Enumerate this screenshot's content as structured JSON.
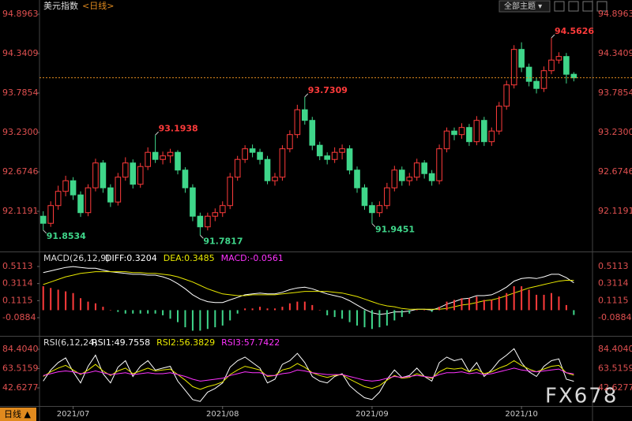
{
  "chart_data": [
    {
      "type": "candlestick",
      "title": "美元指数",
      "period": "<日线>",
      "up_color": "#ff3b3b",
      "down_color": "#3fd68a",
      "last_line_color": "#e08a1e",
      "xlim": [
        -0.5,
        73.5
      ],
      "xticks": [
        {
          "value": 4,
          "label": "2021/07"
        },
        {
          "value": 24,
          "label": "2021/08"
        },
        {
          "value": 44,
          "label": "2021/09"
        },
        {
          "value": 64,
          "label": "2021/10"
        }
      ],
      "ylim": [
        91.5637,
        94.8963
      ],
      "yticks": [
        94.8963,
        94.3409,
        93.7854,
        {
          "value": 93.23,
          "label": "93.2300"
        },
        92.6746,
        92.1191
      ],
      "open": [
        92.05,
        91.95,
        92.2,
        92.4,
        92.55,
        92.35,
        92.1,
        92.45,
        92.8,
        92.45,
        92.25,
        92.6,
        92.8,
        92.5,
        92.75,
        92.95,
        92.85,
        92.9,
        92.95,
        92.7,
        92.45,
        92.05,
        91.9,
        92.05,
        92.1,
        92.2,
        92.6,
        92.85,
        93.0,
        92.95,
        92.85,
        92.55,
        92.6,
        93.0,
        93.2,
        93.55,
        93.4,
        93.05,
        92.9,
        92.85,
        92.95,
        93.0,
        92.7,
        92.45,
        92.2,
        92.1,
        92.2,
        92.45,
        92.7,
        92.55,
        92.6,
        92.8,
        92.65,
        92.55,
        93.0,
        93.25,
        93.2,
        93.3,
        93.1,
        93.4,
        93.1,
        93.25,
        93.6,
        93.9,
        94.4,
        94.15,
        93.95,
        93.85,
        94.1,
        94.25,
        94.3,
        94.05
      ],
      "high": [
        92.12,
        92.26,
        92.48,
        92.62,
        92.6,
        92.4,
        92.5,
        92.86,
        92.84,
        92.5,
        92.66,
        92.88,
        92.85,
        92.8,
        93.02,
        93.1938,
        92.96,
        93.0,
        92.98,
        92.74,
        92.5,
        92.1,
        92.1,
        92.16,
        92.26,
        92.66,
        92.9,
        93.05,
        93.06,
        93.0,
        92.9,
        92.66,
        93.05,
        93.26,
        93.62,
        93.7309,
        93.45,
        93.1,
        92.95,
        93.02,
        93.06,
        93.05,
        92.75,
        92.5,
        92.25,
        92.26,
        92.52,
        92.76,
        92.75,
        92.66,
        92.86,
        92.84,
        92.7,
        93.06,
        93.3,
        93.3,
        93.36,
        93.35,
        93.46,
        93.45,
        93.3,
        93.66,
        93.96,
        94.46,
        94.5,
        94.2,
        94.0,
        94.16,
        94.5626,
        94.36,
        94.35,
        94.08
      ],
      "low": [
        91.8534,
        91.9,
        92.14,
        92.33,
        92.28,
        92.04,
        92.05,
        92.4,
        92.38,
        92.18,
        92.2,
        92.55,
        92.44,
        92.45,
        92.7,
        92.8,
        92.78,
        92.8,
        92.64,
        92.38,
        91.98,
        91.7817,
        91.85,
        91.98,
        92.04,
        92.15,
        92.55,
        92.8,
        92.88,
        92.78,
        92.5,
        92.48,
        92.55,
        92.95,
        93.15,
        93.34,
        92.98,
        92.84,
        92.78,
        92.8,
        92.85,
        92.64,
        92.38,
        92.14,
        91.9451,
        92.04,
        92.15,
        92.4,
        92.48,
        92.48,
        92.55,
        92.58,
        92.48,
        92.5,
        92.95,
        93.12,
        93.14,
        93.04,
        93.05,
        93.04,
        93.04,
        93.2,
        93.55,
        93.85,
        94.08,
        93.88,
        93.78,
        93.8,
        94.05,
        94.2,
        93.92,
        93.95
      ],
      "close": [
        91.95,
        92.2,
        92.4,
        92.55,
        92.35,
        92.1,
        92.45,
        92.8,
        92.45,
        92.25,
        92.6,
        92.8,
        92.5,
        92.75,
        92.95,
        92.85,
        92.9,
        92.95,
        92.7,
        92.45,
        92.05,
        91.9,
        92.05,
        92.1,
        92.2,
        92.6,
        92.85,
        93.0,
        92.95,
        92.85,
        92.55,
        92.6,
        93.0,
        93.2,
        93.55,
        93.4,
        93.05,
        92.9,
        92.85,
        92.95,
        93.0,
        92.7,
        92.45,
        92.2,
        92.1,
        92.2,
        92.45,
        92.7,
        92.55,
        92.6,
        92.8,
        92.65,
        92.55,
        93.0,
        93.25,
        93.2,
        93.3,
        93.1,
        93.4,
        93.1,
        93.25,
        93.6,
        93.9,
        94.4,
        94.15,
        93.95,
        93.85,
        94.1,
        94.25,
        94.3,
        94.05,
        94.0
      ],
      "annotations": [
        {
          "x": 0,
          "value": 91.8534,
          "color": "#3fd68a"
        },
        {
          "x": 15,
          "value": 93.1938,
          "color": "#ff3b3b"
        },
        {
          "x": 21,
          "value": 91.7817,
          "color": "#3fd68a"
        },
        {
          "x": 35,
          "value": 93.7309,
          "color": "#ff3b3b"
        },
        {
          "x": 44,
          "value": 91.9451,
          "color": "#3fd68a"
        },
        {
          "x": 68,
          "value": 94.5626,
          "color": "#ff3b3b"
        }
      ]
    },
    {
      "type": "macd",
      "title": "MACD(26,12,9)",
      "ylim": [
        -0.2913,
        0.6589
      ],
      "yticks": [
        0.5113,
        0.3114,
        0.1115,
        -0.0884
      ],
      "series": [
        {
          "name": "DIFF:0.3204",
          "color": "#ffffff",
          "kind": "line",
          "values": [
            0.44,
            0.46,
            0.48,
            0.5,
            0.51,
            0.5,
            0.49,
            0.49,
            0.47,
            0.45,
            0.44,
            0.43,
            0.42,
            0.42,
            0.41,
            0.41,
            0.39,
            0.36,
            0.31,
            0.25,
            0.18,
            0.13,
            0.1,
            0.09,
            0.09,
            0.12,
            0.15,
            0.18,
            0.19,
            0.2,
            0.19,
            0.19,
            0.21,
            0.24,
            0.26,
            0.27,
            0.25,
            0.22,
            0.19,
            0.17,
            0.15,
            0.11,
            0.06,
            0.01,
            -0.03,
            -0.05,
            -0.04,
            -0.02,
            -0.02,
            -0.01,
            0.01,
            0.01,
            0.0,
            0.03,
            0.07,
            0.1,
            0.13,
            0.14,
            0.17,
            0.17,
            0.18,
            0.22,
            0.27,
            0.34,
            0.37,
            0.38,
            0.37,
            0.39,
            0.42,
            0.42,
            0.38,
            0.3204
          ]
        },
        {
          "name": "DEA:0.3485",
          "color": "#e8e800",
          "kind": "line",
          "values": [
            0.3,
            0.33,
            0.36,
            0.39,
            0.41,
            0.43,
            0.44,
            0.45,
            0.45,
            0.45,
            0.45,
            0.45,
            0.44,
            0.44,
            0.43,
            0.43,
            0.42,
            0.41,
            0.39,
            0.36,
            0.33,
            0.29,
            0.25,
            0.22,
            0.19,
            0.18,
            0.17,
            0.17,
            0.18,
            0.18,
            0.18,
            0.18,
            0.19,
            0.2,
            0.21,
            0.22,
            0.22,
            0.22,
            0.22,
            0.21,
            0.2,
            0.18,
            0.16,
            0.13,
            0.1,
            0.07,
            0.05,
            0.04,
            0.02,
            0.01,
            0.01,
            0.01,
            0.01,
            0.01,
            0.02,
            0.04,
            0.06,
            0.07,
            0.09,
            0.11,
            0.12,
            0.14,
            0.17,
            0.2,
            0.23,
            0.26,
            0.28,
            0.3,
            0.32,
            0.34,
            0.35,
            0.3485
          ]
        },
        {
          "name": "MACD:-0.0561",
          "color": "#ff33ff",
          "kind": "histogram",
          "up_color": "#ff3b3b",
          "down_color": "#3fd68a",
          "values": [
            0.28,
            0.26,
            0.24,
            0.22,
            0.2,
            0.14,
            0.1,
            0.08,
            0.04,
            0,
            -0.02,
            -0.04,
            -0.04,
            -0.04,
            -0.04,
            -0.04,
            -0.06,
            -0.1,
            -0.14,
            -0.2,
            -0.24,
            -0.24,
            -0.22,
            -0.2,
            -0.18,
            -0.12,
            -0.04,
            0.02,
            0.02,
            0.04,
            0.02,
            0.02,
            0.04,
            0.08,
            0.1,
            0.1,
            0.06,
            0,
            -0.06,
            -0.08,
            -0.1,
            -0.14,
            -0.18,
            -0.2,
            -0.22,
            -0.2,
            -0.18,
            -0.12,
            -0.08,
            -0.04,
            0,
            0,
            -0.02,
            0.04,
            0.1,
            0.12,
            0.14,
            0.14,
            0.16,
            0.12,
            0.12,
            0.16,
            0.2,
            0.28,
            0.28,
            0.24,
            0.18,
            0.18,
            0.2,
            0.16,
            0.06,
            -0.0561
          ]
        }
      ]
    },
    {
      "type": "rsi",
      "title": "RSI(6,12,24)",
      "ylim": [
        23.02,
        97.19
      ],
      "yticks": [
        {
          "value": 84.404,
          "label": "84.4040"
        },
        63.5159,
        42.6277
      ],
      "series": [
        {
          "name": "RSI1:49.7558",
          "color": "#ffffff",
          "values": [
            50,
            62,
            70,
            75,
            60,
            48,
            66,
            78,
            58,
            48,
            65,
            72,
            55,
            66,
            72,
            62,
            64,
            66,
            50,
            40,
            30,
            28,
            38,
            42,
            48,
            65,
            72,
            76,
            70,
            64,
            48,
            52,
            68,
            72,
            80,
            70,
            55,
            50,
            48,
            55,
            58,
            45,
            38,
            32,
            30,
            38,
            52,
            62,
            54,
            56,
            64,
            55,
            50,
            70,
            76,
            72,
            74,
            60,
            70,
            55,
            62,
            72,
            78,
            85,
            70,
            60,
            55,
            66,
            72,
            74,
            52,
            49.7558
          ]
        },
        {
          "name": "RSI2:56.3829",
          "color": "#e8e800",
          "values": [
            55,
            60,
            64,
            67,
            62,
            57,
            62,
            68,
            61,
            56,
            61,
            64,
            58,
            61,
            64,
            61,
            62,
            63,
            57,
            51,
            44,
            41,
            44,
            46,
            49,
            57,
            62,
            66,
            64,
            62,
            55,
            56,
            62,
            64,
            69,
            65,
            59,
            56,
            54,
            56,
            57,
            52,
            48,
            44,
            42,
            45,
            51,
            56,
            53,
            54,
            58,
            55,
            53,
            60,
            64,
            63,
            64,
            60,
            63,
            58,
            60,
            64,
            67,
            72,
            67,
            63,
            60,
            63,
            66,
            67,
            59,
            56.3829
          ]
        },
        {
          "name": "RSI3:57.7422",
          "color": "#ff33ff",
          "values": [
            56,
            58,
            60,
            61,
            60,
            58,
            59,
            61,
            59,
            57,
            58,
            59,
            57,
            58,
            59,
            58,
            58,
            59,
            57,
            55,
            52,
            50,
            51,
            52,
            53,
            56,
            58,
            60,
            59,
            59,
            56,
            56,
            58,
            59,
            62,
            61,
            59,
            58,
            57,
            57,
            57,
            55,
            53,
            51,
            50,
            51,
            53,
            55,
            54,
            55,
            56,
            55,
            54,
            57,
            59,
            59,
            60,
            58,
            59,
            57,
            58,
            60,
            62,
            64,
            62,
            61,
            60,
            61,
            62,
            63,
            59,
            57.7422
          ]
        }
      ]
    }
  ],
  "ui": {
    "theme_button": "全部主题 ▾",
    "period_button": "日线 ▲",
    "watermark": "FX678"
  }
}
